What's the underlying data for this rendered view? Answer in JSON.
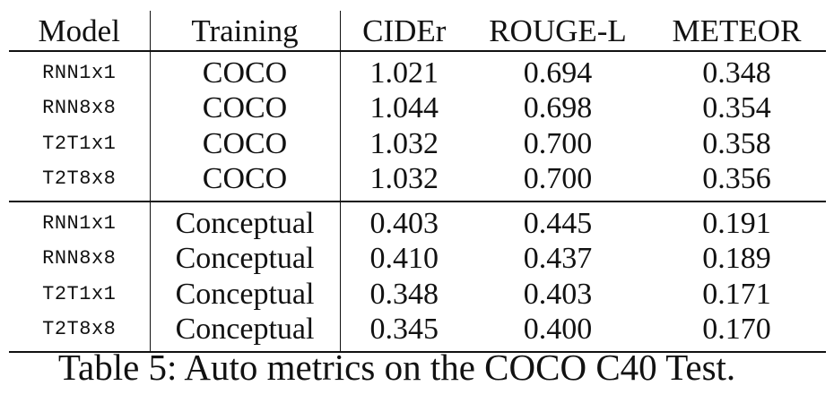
{
  "table": {
    "headers": [
      "Model",
      "Training",
      "CIDEr",
      "ROUGE-L",
      "METEOR"
    ],
    "rows": [
      [
        "RNN1x1",
        "COCO",
        "1.021",
        "0.694",
        "0.348"
      ],
      [
        "RNN8x8",
        "COCO",
        "1.044",
        "0.698",
        "0.354"
      ],
      [
        "T2T1x1",
        "COCO",
        "1.032",
        "0.700",
        "0.358"
      ],
      [
        "T2T8x8",
        "COCO",
        "1.032",
        "0.700",
        "0.356"
      ],
      [
        "RNN1x1",
        "Conceptual",
        "0.403",
        "0.445",
        "0.191"
      ],
      [
        "RNN8x8",
        "Conceptual",
        "0.410",
        "0.437",
        "0.189"
      ],
      [
        "T2T1x1",
        "Conceptual",
        "0.348",
        "0.403",
        "0.171"
      ],
      [
        "T2T8x8",
        "Conceptual",
        "0.345",
        "0.400",
        "0.170"
      ]
    ]
  },
  "caption": "Table 5: Auto metrics on the COCO C40 Test."
}
